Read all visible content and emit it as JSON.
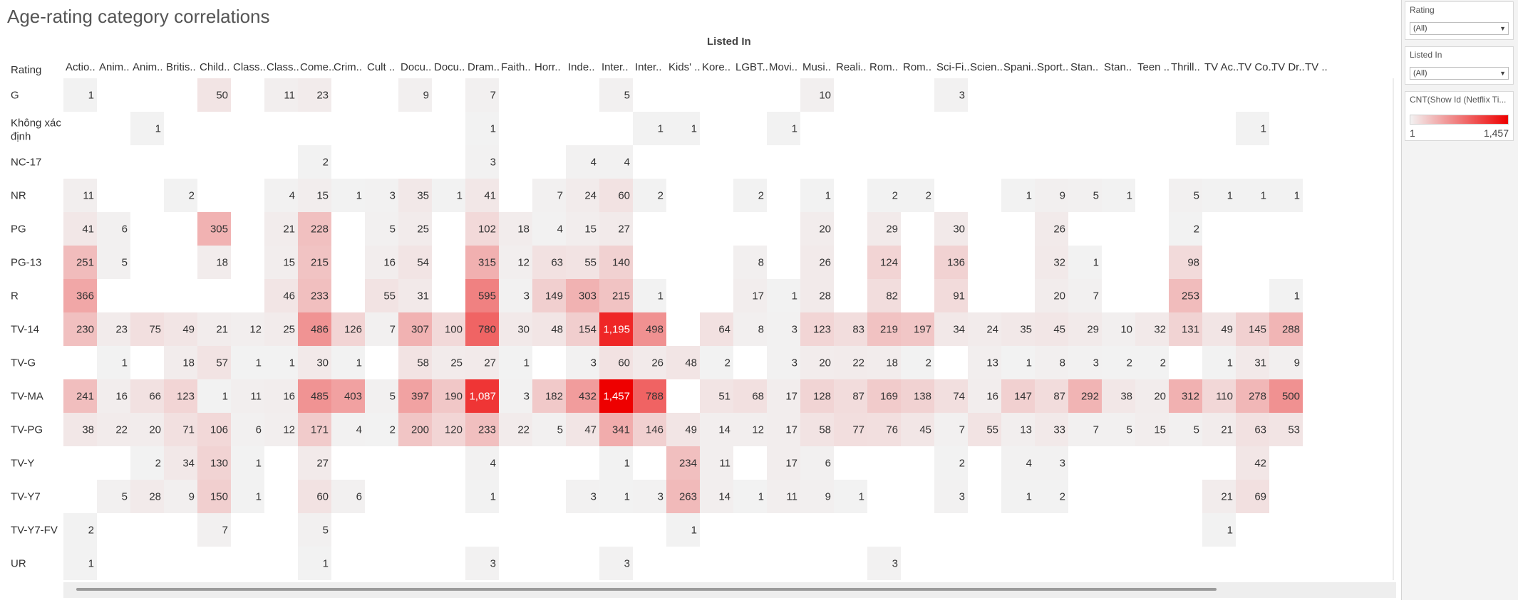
{
  "title": "Age-rating category correlations",
  "column_group_label": "Listed In",
  "row_header": "Rating",
  "filters": [
    {
      "title": "Rating",
      "value": "(All)"
    },
    {
      "title": "Listed In",
      "value": "(All)"
    }
  ],
  "legend": {
    "title": "CNT(Show Id (Netflix Ti...",
    "min_label": "1",
    "max_label": "1,457",
    "low_color": "#f2f2f2",
    "high_color": "#ee0000"
  },
  "chart_data": {
    "type": "heatmap",
    "title": "Age-rating category correlations",
    "xlabel": "Listed In",
    "ylabel": "Rating",
    "color_range": [
      1,
      1457
    ],
    "columns": [
      "Actio..",
      "Anim..",
      "Anim..",
      "Britis..",
      "Child..",
      "Class..",
      "Class..",
      "Come..",
      "Crim..",
      "Cult ..",
      "Docu..",
      "Docu..",
      "Dram..",
      "Faith..",
      "Horr..",
      "Inde..",
      "Inter..",
      "Inter..",
      "Kids' ..",
      "Kore..",
      "LGBT..",
      "Movi..",
      "Musi..",
      "Reali..",
      "Rom..",
      "Rom..",
      "Sci-Fi..",
      "Scien..",
      "Spani..",
      "Sport..",
      "Stan..",
      "Stan..",
      "Teen ..",
      "Thrill..",
      "TV Ac..",
      "TV Co..",
      "TV Dr..",
      "TV .."
    ],
    "rows": [
      "G",
      "Không xác định",
      "NC-17",
      "NR",
      "PG",
      "PG-13",
      "R",
      "TV-14",
      "TV-G",
      "TV-MA",
      "TV-PG",
      "TV-Y",
      "TV-Y7",
      "TV-Y7-FV",
      "UR"
    ],
    "values": [
      [
        1,
        null,
        null,
        null,
        50,
        null,
        11,
        23,
        null,
        null,
        9,
        null,
        7,
        null,
        null,
        null,
        5,
        null,
        null,
        null,
        null,
        null,
        10,
        null,
        null,
        null,
        3,
        null,
        null,
        null,
        null,
        null,
        null,
        null,
        null,
        null,
        null,
        null
      ],
      [
        null,
        null,
        1,
        null,
        null,
        null,
        null,
        null,
        null,
        null,
        null,
        null,
        1,
        null,
        null,
        null,
        null,
        1,
        1,
        null,
        null,
        1,
        null,
        null,
        null,
        null,
        null,
        null,
        null,
        null,
        null,
        null,
        null,
        null,
        null,
        1,
        null,
        null
      ],
      [
        null,
        null,
        null,
        null,
        null,
        null,
        null,
        2,
        null,
        null,
        null,
        null,
        3,
        null,
        null,
        4,
        4,
        null,
        null,
        null,
        null,
        null,
        null,
        null,
        null,
        null,
        null,
        null,
        null,
        null,
        null,
        null,
        null,
        null,
        null,
        null,
        null,
        null
      ],
      [
        11,
        null,
        null,
        2,
        null,
        null,
        4,
        15,
        1,
        3,
        35,
        1,
        41,
        null,
        7,
        24,
        60,
        2,
        null,
        null,
        2,
        null,
        1,
        null,
        2,
        2,
        null,
        null,
        1,
        9,
        5,
        1,
        null,
        5,
        1,
        1,
        1,
        null
      ],
      [
        41,
        6,
        null,
        null,
        305,
        null,
        21,
        228,
        null,
        5,
        25,
        null,
        102,
        18,
        4,
        15,
        27,
        null,
        null,
        null,
        null,
        null,
        20,
        null,
        29,
        null,
        30,
        null,
        null,
        26,
        null,
        null,
        null,
        2,
        null,
        null,
        null,
        null
      ],
      [
        251,
        5,
        null,
        null,
        18,
        null,
        15,
        215,
        null,
        16,
        54,
        null,
        315,
        12,
        63,
        55,
        140,
        null,
        null,
        null,
        8,
        null,
        26,
        null,
        124,
        null,
        136,
        null,
        null,
        32,
        1,
        null,
        null,
        98,
        null,
        null,
        null,
        null
      ],
      [
        366,
        null,
        null,
        null,
        null,
        null,
        46,
        233,
        null,
        55,
        31,
        null,
        595,
        3,
        149,
        303,
        215,
        1,
        null,
        null,
        17,
        1,
        28,
        null,
        82,
        null,
        91,
        null,
        null,
        20,
        7,
        null,
        null,
        253,
        null,
        null,
        1,
        null
      ],
      [
        230,
        23,
        75,
        49,
        21,
        12,
        25,
        486,
        126,
        7,
        307,
        100,
        780,
        30,
        48,
        154,
        1195,
        498,
        null,
        64,
        8,
        3,
        123,
        83,
        219,
        197,
        34,
        24,
        35,
        45,
        29,
        10,
        32,
        131,
        49,
        145,
        288,
        null
      ],
      [
        null,
        1,
        null,
        18,
        57,
        1,
        1,
        30,
        1,
        null,
        58,
        25,
        27,
        1,
        null,
        3,
        60,
        26,
        48,
        2,
        null,
        3,
        20,
        22,
        18,
        2,
        null,
        13,
        1,
        8,
        3,
        2,
        2,
        null,
        1,
        31,
        9,
        null
      ],
      [
        241,
        16,
        66,
        123,
        1,
        11,
        16,
        485,
        403,
        5,
        397,
        190,
        1087,
        3,
        182,
        432,
        1457,
        788,
        null,
        51,
        68,
        17,
        128,
        87,
        169,
        138,
        74,
        16,
        147,
        87,
        292,
        38,
        20,
        312,
        110,
        278,
        500,
        null
      ],
      [
        38,
        22,
        20,
        71,
        106,
        6,
        12,
        171,
        4,
        2,
        200,
        120,
        233,
        22,
        5,
        47,
        341,
        146,
        49,
        14,
        12,
        17,
        58,
        77,
        76,
        45,
        7,
        55,
        13,
        33,
        7,
        5,
        15,
        5,
        21,
        63,
        53,
        null
      ],
      [
        null,
        null,
        2,
        34,
        130,
        1,
        null,
        27,
        null,
        null,
        null,
        null,
        4,
        null,
        null,
        null,
        1,
        null,
        234,
        11,
        null,
        17,
        6,
        null,
        null,
        null,
        2,
        null,
        4,
        3,
        null,
        null,
        null,
        null,
        null,
        42,
        null,
        null
      ],
      [
        null,
        5,
        28,
        9,
        150,
        1,
        null,
        60,
        6,
        null,
        null,
        null,
        1,
        null,
        null,
        3,
        1,
        3,
        263,
        14,
        1,
        11,
        9,
        1,
        null,
        null,
        3,
        null,
        1,
        2,
        null,
        null,
        null,
        null,
        21,
        69,
        null,
        null
      ],
      [
        2,
        null,
        null,
        null,
        7,
        null,
        null,
        5,
        null,
        null,
        null,
        null,
        null,
        null,
        null,
        null,
        null,
        null,
        1,
        null,
        null,
        null,
        null,
        null,
        null,
        null,
        null,
        null,
        null,
        null,
        null,
        null,
        null,
        null,
        1,
        null,
        null,
        null
      ],
      [
        1,
        null,
        null,
        null,
        null,
        null,
        null,
        1,
        null,
        null,
        null,
        null,
        3,
        null,
        null,
        null,
        3,
        null,
        null,
        null,
        null,
        null,
        null,
        null,
        3,
        null,
        null,
        null,
        null,
        null,
        null,
        null,
        null,
        null,
        null,
        null,
        null,
        null
      ]
    ]
  }
}
